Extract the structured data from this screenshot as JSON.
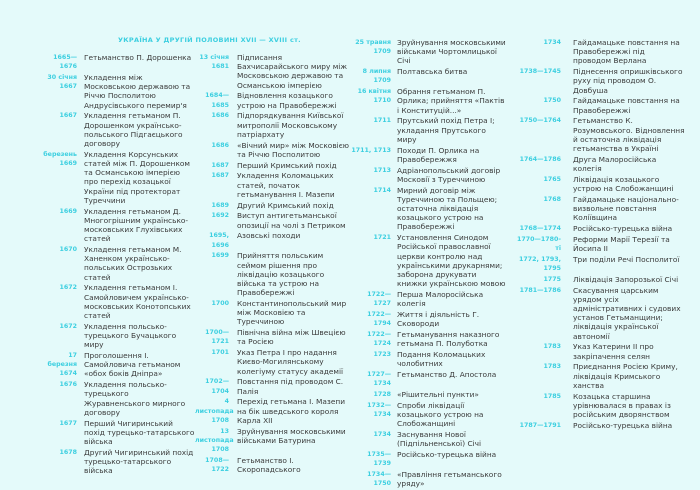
{
  "title": "УКРАЇНА У ДРУГІЙ ПОЛОВИНІ XVII — XVIII ст.",
  "colors": {
    "accent": "#3ccfe0",
    "background": "#e4fafa",
    "text": "#3a3a3a"
  },
  "columns": [
    [
      {
        "date": "1665—1676",
        "text": "Гетьманство П. Дорошенка"
      },
      {
        "date": "30 січня 1667",
        "text": "Укладення між Московською державою та Річчю Посполитою Андрусівського перемир'я"
      },
      {
        "date": "1667",
        "text": "Укладення гетьманом П. Дорошенком українсько-польського Підгаєцького договору"
      },
      {
        "date": "березень 1669",
        "text": "Укладення Корсунських статей між П. Дорошенком та Османською імперією про перехід козацької України під протекторат Туреччини"
      },
      {
        "date": "1669",
        "text": "Укладення гетьманом Д. Многогрішним українсько-московських Глухівських статей"
      },
      {
        "date": "1670",
        "text": "Укладення гетьманом М. Ханенком українсько-польських Острозьких статей"
      },
      {
        "date": "1672",
        "text": "Укладення гетьманом І. Самойловичем українсько-московських Конотопських статей"
      },
      {
        "date": "1672",
        "text": "Укладення польсько-турецького Бучацького миру"
      },
      {
        "date": "17 березня 1674",
        "text": "Проголошення І. Самойловича гетьманом «обох боків Дніпра»"
      },
      {
        "date": "1676",
        "text": "Укладення польсько-турецького Журавненського мирного договору"
      },
      {
        "date": "1677",
        "text": "Перший Чигиринський похід турецько-татарського війська"
      },
      {
        "date": "1678",
        "text": "Другий Чигиринський похід турецько-татарського війська"
      }
    ],
    [
      {
        "date": "13 січня 1681",
        "text": "Підписання Бахчисарайського миру між Московською державою та Османською імперією"
      },
      {
        "date": "1684—1685",
        "text": "Відновлення козацького устрою на Правобережжі"
      },
      {
        "date": "1686",
        "text": "Підпорядкування Київської митрополії Московському патріархату"
      },
      {
        "date": "1686",
        "text": "«Вічний мир» між Московією та Річчю Посполитою"
      },
      {
        "date": "1687",
        "text": "Перший Кримський похід"
      },
      {
        "date": "1687",
        "text": "Укладення Коломацьких статей, початок гетьманування І. Мазепи"
      },
      {
        "date": "1689",
        "text": "Другий Кримський похід"
      },
      {
        "date": "1692",
        "text": "Виступ антигетьманської опозиції на чолі з Петриком"
      },
      {
        "date": "1695, 1696",
        "text": "Азовські походи"
      },
      {
        "date": "1699",
        "text": "Прийняття польським сеймом рішення про ліквідацію козацького війська та устрою на Правобережжі"
      },
      {
        "date": "1700",
        "text": "Константинопольський мир між Московією та Туреччиною"
      },
      {
        "date": "1700—1721",
        "text": "Північна війна між Швецією та Росією"
      },
      {
        "date": "1701",
        "text": "Указ Петра І про надання Києво-Могилянському колегіуму статусу академії"
      },
      {
        "date": "1702—1704",
        "text": "Повстання під проводом С. Палія"
      },
      {
        "date": "4 листопада 1708",
        "text": "Перехід гетьмана І. Мазепи на бік шведського короля Карла ХІІ"
      },
      {
        "date": "13 листопада 1708",
        "text": "Зруйнування московськими військами Батурина"
      },
      {
        "date": "1708—1722",
        "text": "Гетьманство І. Скоропадського"
      }
    ],
    [
      {
        "date": "25 травня 1709",
        "text": "Зруйнування московськими військами Чортомлицької Січі"
      },
      {
        "date": "8 липня 1709",
        "text": "Полтавська битва"
      },
      {
        "date": "16 квітня 1710",
        "text": "Обрання гетьманом П. Орлика; прийняття «Пактів і Конституцій...»"
      },
      {
        "date": "1711",
        "text": "Прутський похід Петра І; укладання Прутського миру"
      },
      {
        "date": "1711, 1713",
        "text": "Походи П. Орлика на Правобережжя"
      },
      {
        "date": "1713",
        "text": "Адріанопольський договір Московії з Туреччиною"
      },
      {
        "date": "1714",
        "text": "Мирний договір між Туреччиною та Польщею; остаточна ліквідація козацького устрою на Правобережжі"
      },
      {
        "date": "1721",
        "text": "Установлення Синодом Російської православної церкви контролю над українськими друкарнями; заборона друкувати книжки українською мовою"
      },
      {
        "date": "1722—1727",
        "text": "Перша Малоросійська колегія"
      },
      {
        "date": "1722—1794",
        "text": "Життя і діяльність Г. Сковороди"
      },
      {
        "date": "1722—1724",
        "text": "Гетьманування наказного гетьмана П. Полуботка"
      },
      {
        "date": "1723",
        "text": "Подання Коломацьких чолобитних"
      },
      {
        "date": "1727—1734",
        "text": "Гетьманство Д. Апостола"
      },
      {
        "date": "1728",
        "text": "«Рішительні пункти»"
      },
      {
        "date": "1732—1734",
        "text": "Спроби ліквідації козацького устрою на Слобожанщині"
      },
      {
        "date": "1734",
        "text": "Заснування Нової (Підпільненської) Січі"
      },
      {
        "date": "1735—1739",
        "text": "Російсько-турецька війна"
      },
      {
        "date": "1734—1750",
        "text": "«Правління гетьманського уряду»"
      }
    ],
    [
      {
        "date": "1734",
        "text": "Гайдамацьке повстання на Правобережжі під проводом Верлана"
      },
      {
        "date": "1738—1745",
        "text": "Піднесення опришківського руху під проводом О. Довбуша"
      },
      {
        "date": "1750",
        "text": "Гайдамацьке повстання на Правобережжі"
      },
      {
        "date": "1750—1764",
        "text": "Гетьманство К. Розумовського. Відновлення й остаточна ліквідація гетьманства в Україні"
      },
      {
        "date": "1764—1786",
        "text": "Друга Малоросійська колегія"
      },
      {
        "date": "1765",
        "text": "Ліквідація козацького устрою на Слобожанщині"
      },
      {
        "date": "1768",
        "text": "Гайдамацьке національно-визвольне повстання Коліївщина"
      },
      {
        "date": "1768—1774",
        "text": "Російсько-турецька війна"
      },
      {
        "date": "1770—1780-ті",
        "text": "Реформи Марії Терезії та Йосипа ІІ"
      },
      {
        "date": "1772, 1793, 1795",
        "text": "Три поділи Речі Посполитої"
      },
      {
        "date": "1775",
        "text": "Ліквідація Запорозької Січі"
      },
      {
        "date": "1781—1786",
        "text": "Скасування царським урядом усіх адміністративних і судових установ Гетьманщини; ліквідація української автономії"
      },
      {
        "date": "1783",
        "text": "Указ Катерини ІІ про закріпачення селян"
      },
      {
        "date": "1783",
        "text": "Приєднання Росією Криму, ліквідація Кримського ханства"
      },
      {
        "date": "1785",
        "text": "Козацька старшина урівнювалася в правах із російським дворянством"
      },
      {
        "date": "1787—1791",
        "text": "Російсько-турецька війна"
      }
    ]
  ]
}
